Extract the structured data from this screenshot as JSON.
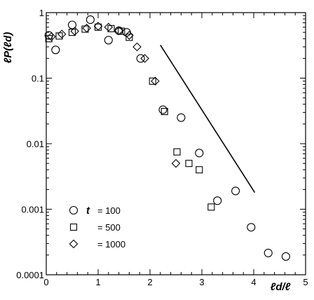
{
  "chart_data": {
    "type": "scatter",
    "ylabel": "ℓP(ℓd)",
    "xlabel": "ℓd/ℓ",
    "xlim": [
      0,
      5
    ],
    "ylim": [
      0.0001,
      1
    ],
    "yscale": "log",
    "grid": false,
    "legend_position": "bottom-left",
    "legend_variable": "t",
    "x_ticks": [
      "0",
      "1",
      "2",
      "3",
      "4",
      "5"
    ],
    "y_ticks": [
      "0.0001",
      "0.001",
      "0.01",
      "0.1",
      "1"
    ],
    "series": [
      {
        "name": "= 100",
        "marker": "circle",
        "points": [
          [
            0.05,
            0.45
          ],
          [
            0.18,
            0.27
          ],
          [
            0.5,
            0.65
          ],
          [
            0.85,
            0.78
          ],
          [
            1.2,
            0.38
          ],
          [
            1.4,
            0.53
          ],
          [
            1.55,
            0.5
          ],
          [
            1.82,
            0.2
          ],
          [
            2.25,
            0.033
          ],
          [
            2.6,
            0.025
          ],
          [
            2.95,
            0.0072
          ],
          [
            3.3,
            0.00135
          ],
          [
            3.65,
            0.0019
          ],
          [
            3.95,
            0.00053
          ],
          [
            4.28,
            0.000215
          ],
          [
            4.62,
            0.00019
          ]
        ]
      },
      {
        "name": "= 500",
        "marker": "square",
        "points": [
          [
            0.05,
            0.4
          ],
          [
            0.25,
            0.44
          ],
          [
            0.5,
            0.5
          ],
          [
            0.75,
            0.56
          ],
          [
            1.0,
            0.6
          ],
          [
            1.25,
            0.57
          ],
          [
            1.45,
            0.52
          ],
          [
            1.6,
            0.42
          ],
          [
            2.05,
            0.09
          ],
          [
            2.28,
            0.031
          ],
          [
            2.52,
            0.0075
          ],
          [
            2.75,
            0.005
          ],
          [
            2.95,
            0.004
          ],
          [
            3.18,
            0.00108
          ]
        ]
      },
      {
        "name": "= 1000",
        "marker": "diamond",
        "points": [
          [
            0.1,
            0.43
          ],
          [
            0.3,
            0.47
          ],
          [
            0.55,
            0.52
          ],
          [
            0.78,
            0.58
          ],
          [
            1.0,
            0.62
          ],
          [
            1.2,
            0.6
          ],
          [
            1.4,
            0.53
          ],
          [
            1.6,
            0.45
          ],
          [
            1.75,
            0.3
          ],
          [
            1.9,
            0.2
          ],
          [
            2.1,
            0.09
          ],
          [
            2.5,
            0.005
          ]
        ]
      }
    ],
    "annotation_line": {
      "points": [
        [
          2.2,
          0.32
        ],
        [
          4.02,
          0.0018
        ]
      ]
    }
  }
}
